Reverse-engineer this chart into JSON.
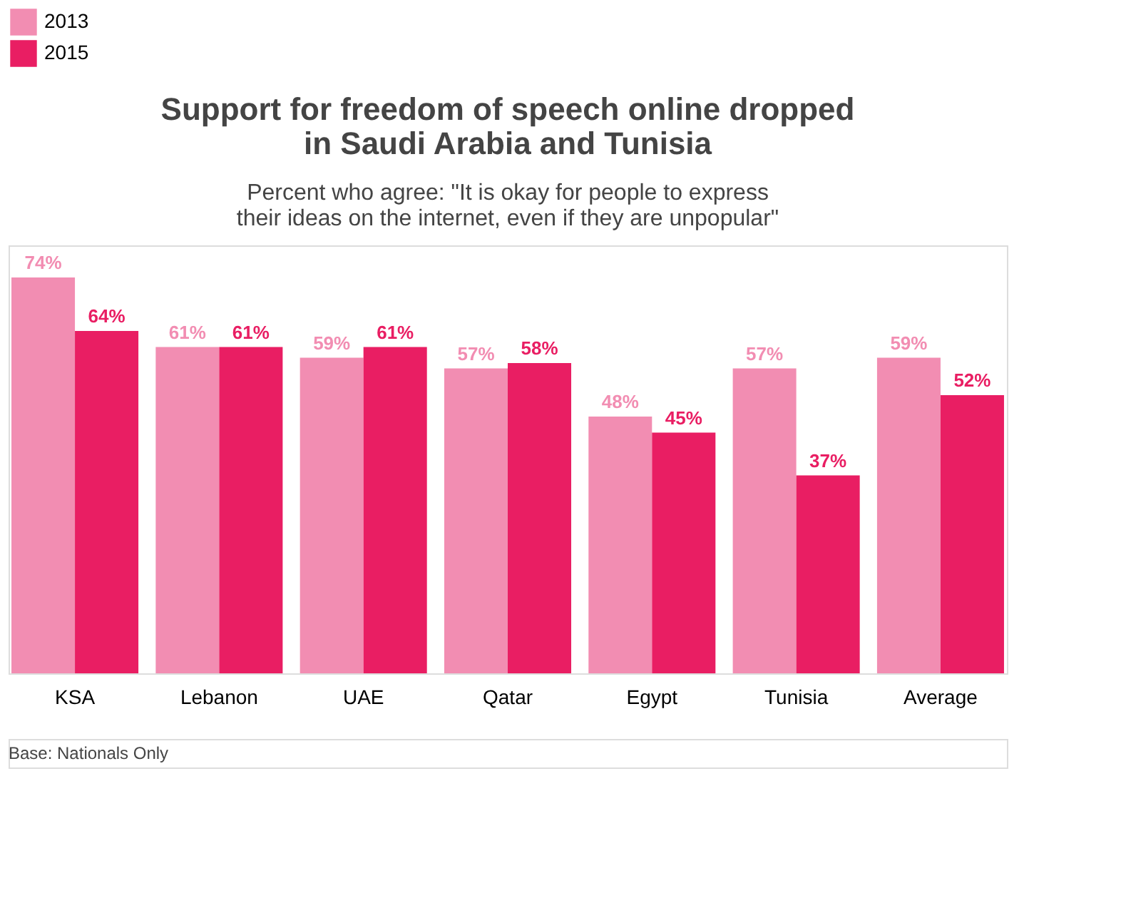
{
  "chart_data": {
    "type": "bar",
    "title": [
      "Support for freedom of speech online dropped",
      "in Saudi Arabia and Tunisia"
    ],
    "subtitle": [
      "Percent who agree: \"It is okay for people to express",
      "their ideas on the internet, even if they are unpopular\""
    ],
    "categories": [
      "KSA",
      "Lebanon",
      "UAE",
      "Qatar",
      "Egypt",
      "Tunisia",
      "Average"
    ],
    "series": [
      {
        "name": "2013",
        "color": "#f28db2",
        "values": [
          74,
          61,
          59,
          57,
          48,
          57,
          59
        ],
        "value_labels": [
          "74%",
          "61%",
          "59%",
          "57%",
          "48%",
          "57%",
          "59%"
        ]
      },
      {
        "name": "2015",
        "color": "#e91e63",
        "values": [
          64,
          61,
          61,
          58,
          45,
          37,
          52
        ],
        "value_labels": [
          "64%",
          "61%",
          "61%",
          "58%",
          "45%",
          "37%",
          "52%"
        ]
      }
    ],
    "legend": "top",
    "grid": false,
    "tick_labels": "x",
    "annotations": [
      "Base: Nationals Only"
    ]
  }
}
